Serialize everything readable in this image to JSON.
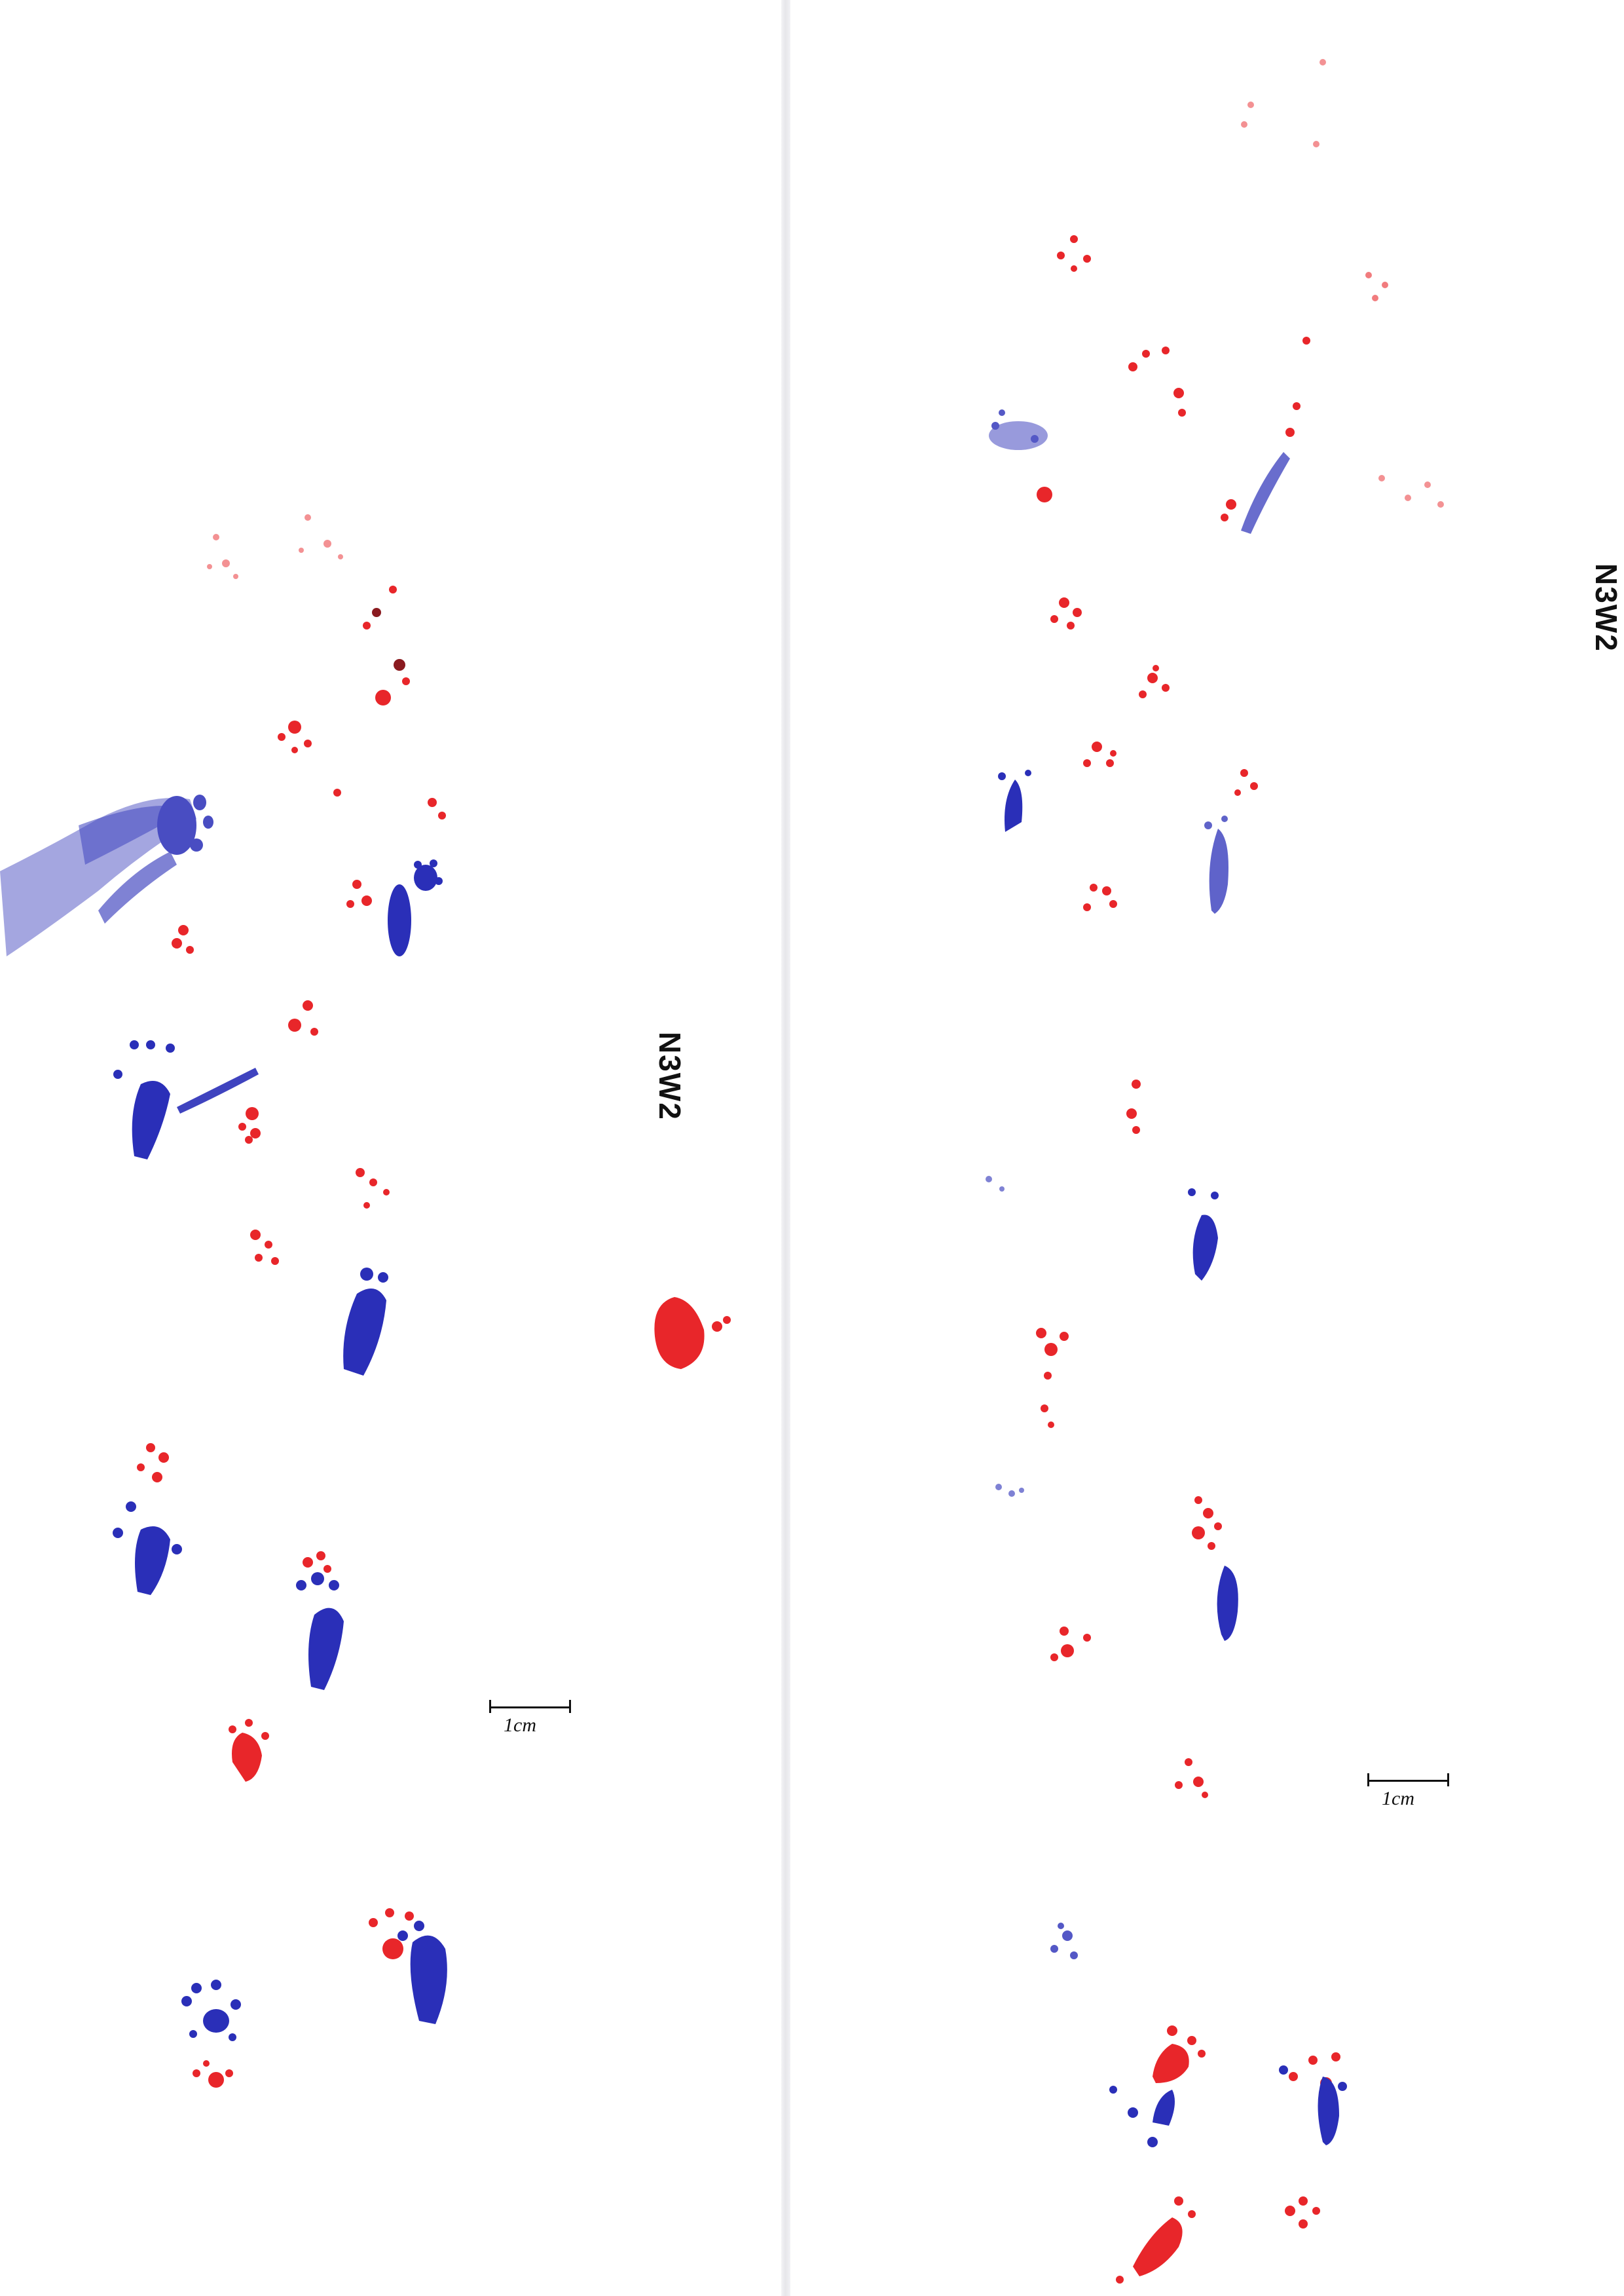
{
  "sheets": [
    {
      "id": "left",
      "label": "N3W2",
      "scale_label": "1cm"
    },
    {
      "id": "right",
      "label": "N3W2",
      "scale_label": "1cm"
    }
  ],
  "colors": {
    "paper": "#ffffff",
    "forefoot_ink": "#e8262a",
    "hindfoot_ink": "#2a2fb8",
    "label_ink": "#111111"
  }
}
